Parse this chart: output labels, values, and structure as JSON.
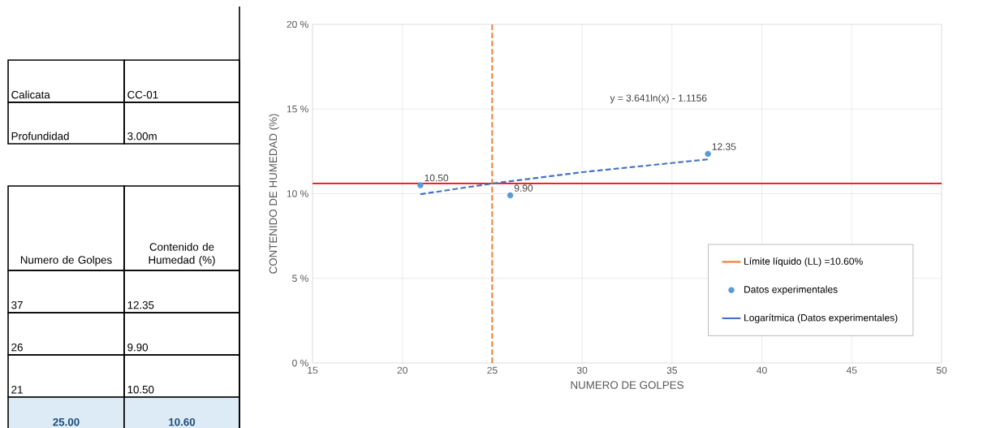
{
  "chart_data": [
    {
      "type": "other",
      "annotations": [
        "Calicata",
        "CC-01",
        "Profundidad",
        "3.00m",
        "Numero de Golpes",
        "Contenido de Humedad (%)",
        "37",
        "12.35",
        "26",
        "9.90",
        "21",
        "10.50",
        "25.00",
        "10.60"
      ]
    },
    {
      "type": "scatter",
      "xlabel": "NUMERO DE GOLPES",
      "ylabel": "CONTENIDO DE HUMEDAD (%)",
      "xlim": [
        15,
        50
      ],
      "xticks": [
        15,
        20,
        25,
        30,
        35,
        40,
        45,
        50
      ],
      "ylim": [
        0,
        20
      ],
      "yticks": [
        {
          "value": 0,
          "label": "0 %"
        },
        {
          "value": 5,
          "label": "5 %"
        },
        {
          "value": 10,
          "label": "10 %"
        },
        {
          "value": 15,
          "label": "15 %"
        },
        {
          "value": 20,
          "label": "20 %"
        }
      ],
      "grid": true,
      "legend": "bottom right",
      "annotations": [
        "y = 3.641ln(x) - 1.1156"
      ],
      "ref_lines": [
        {
          "axis": "y",
          "value": 10.6,
          "color": "#ff0000",
          "line_style": "solid"
        }
      ],
      "series": [
        {
          "type": "line",
          "name": "Límite líquido (LL) =10.60%",
          "color": "#ed7d31",
          "marker": "none",
          "line_style": "dashed",
          "x": [
            25,
            25
          ],
          "values": [
            0,
            20
          ]
        },
        {
          "type": "scatter",
          "name": "Datos experimentales",
          "color": "#5b9bd5",
          "marker": "circle",
          "x": [
            37,
            26,
            21
          ],
          "values": [
            12.35,
            9.9,
            10.5
          ],
          "value_labels": [
            "12.35",
            "9.90",
            "10.50"
          ]
        },
        {
          "type": "line",
          "name": "Logarítmica (Datos experimentales)",
          "color": "#4472c4",
          "marker": "none",
          "line_style": "dashed",
          "x": [
            21,
            25,
            30,
            37
          ],
          "values": [
            9.97,
            10.6,
            11.27,
            12.03
          ]
        }
      ]
    }
  ]
}
